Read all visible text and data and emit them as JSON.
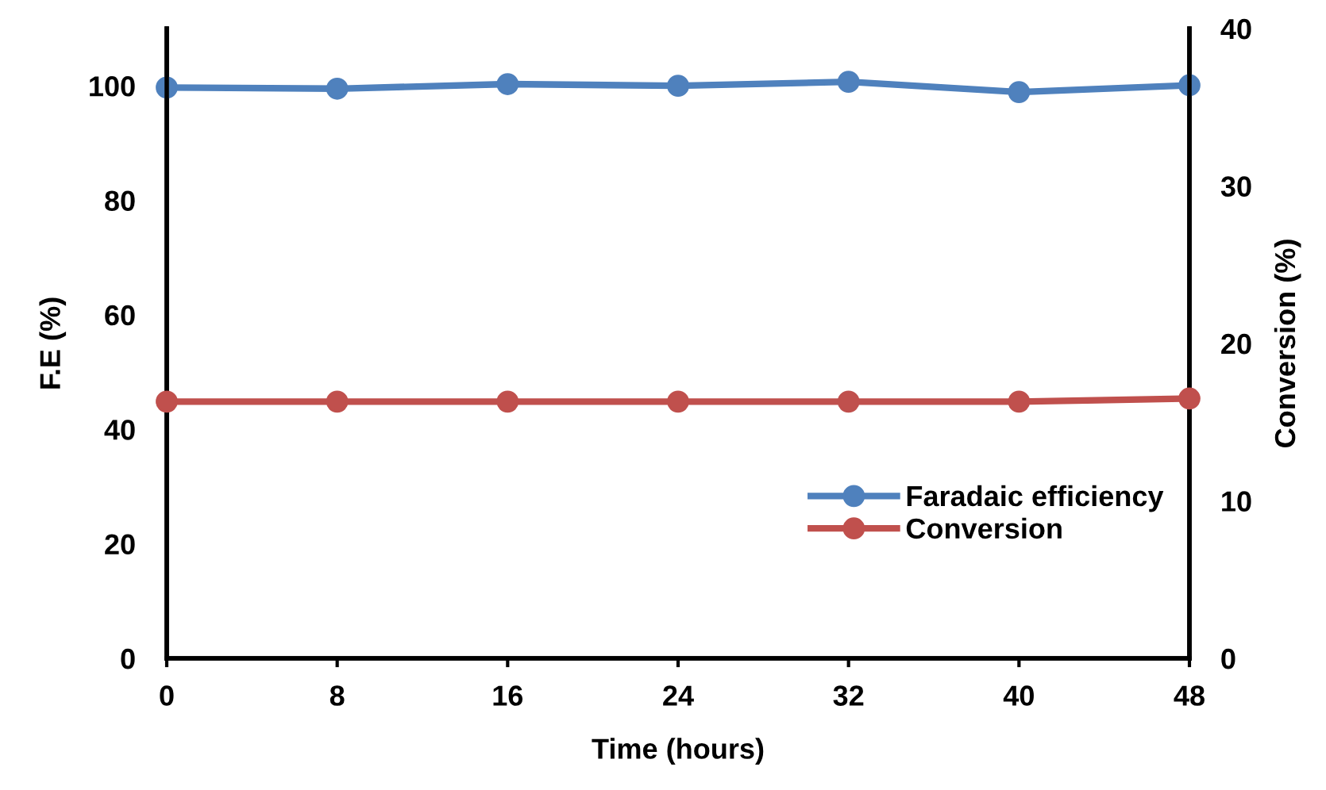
{
  "chart_data": {
    "type": "line",
    "xlabel": "Time (hours)",
    "ylabel": "F.E (%)",
    "y2label": "Conversion (%)",
    "x": [
      0,
      8,
      16,
      24,
      32,
      40,
      48
    ],
    "series": [
      {
        "name": "Faradaic efficiency",
        "color": "#4f81bd",
        "values": [
          99.7,
          99.5,
          100.3,
          100.0,
          100.7,
          98.9,
          100.1
        ]
      },
      {
        "name": "Conversion",
        "color": "#c0504d",
        "axis": "y2",
        "values": [
          16.3,
          16.3,
          16.3,
          16.3,
          16.3,
          16.3,
          16.5
        ]
      }
    ],
    "xlim": [
      0,
      48
    ],
    "xticks": [
      0,
      8,
      16,
      24,
      32,
      40,
      48
    ],
    "ylim": [
      0,
      110
    ],
    "yticks": [
      0,
      20,
      40,
      60,
      80,
      100
    ],
    "y2lim": [
      0,
      40
    ],
    "y2ticks": [
      0,
      10,
      20,
      30,
      40
    ],
    "grid": false,
    "legend": "lower right",
    "marker": "circle",
    "line_style": "solid"
  }
}
